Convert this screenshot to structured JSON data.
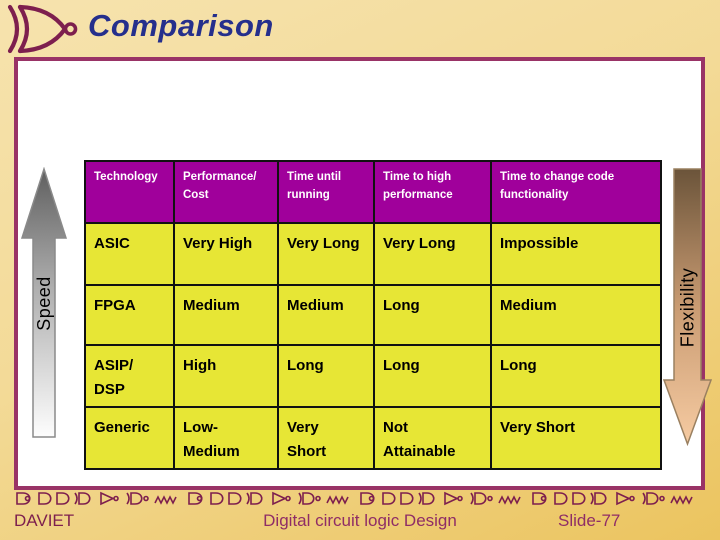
{
  "slide": {
    "title": "Comparison",
    "footer": {
      "institution": "DAVIET",
      "course": "Digital circuit logic Design",
      "slide_number": "Slide-77"
    }
  },
  "arrows": {
    "speed_label": "Speed",
    "flexibility_label": "Flexibility"
  },
  "table": {
    "headers": [
      "Technology",
      "Performance/\nCost",
      "Time until\nrunning",
      "Time to high\nperformance",
      "Time to change code\nfunctionality"
    ],
    "rows": [
      [
        "ASIC",
        "Very High",
        "Very Long",
        "Very Long",
        "Impossible"
      ],
      [
        "FPGA",
        "Medium",
        "Medium",
        "Long",
        "Medium"
      ],
      [
        "ASIP/\nDSP",
        "High",
        "Long",
        "Long",
        "Long"
      ],
      [
        "Generic",
        "Low-Medium",
        "Very\nShort",
        "Not\nAttainable",
        "Very Short"
      ]
    ]
  },
  "icons": {
    "logo": "xnor-gate-icon",
    "divider": "logic-gates-divider-icons"
  },
  "colors": {
    "background_top": "#F6E3AE",
    "background_bottom": "#EBC45F",
    "title_text": "#252F8C",
    "accent_maroon": "#7D1F4E",
    "box_border": "#993366",
    "table_header_bg": "#A0009B",
    "table_header_text": "#FFFFFF",
    "table_body_bg": "#E7E635",
    "table_body_text": "#000000",
    "footer_text": "#8F2D66",
    "speed_arrow_dark": "#666666",
    "speed_arrow_light": "#FDFDFD",
    "flex_arrow_dark": "#6B543A",
    "flex_arrow_light": "#F6CBA2"
  }
}
